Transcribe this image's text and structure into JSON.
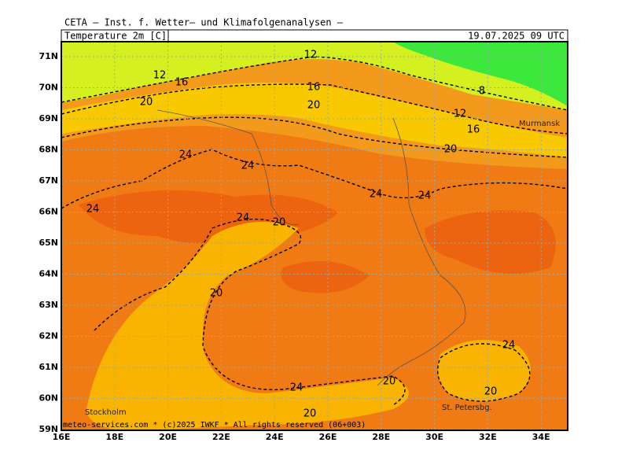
{
  "header": {
    "title": "CETA — Inst. f. Wetter— und Klimafolgenanalysen —",
    "parameter": "Temperature 2m [C]",
    "datetime": "19.07.2025 09 UTC"
  },
  "map": {
    "latitude_labels": [
      "71N",
      "70N",
      "69N",
      "68N",
      "67N",
      "66N",
      "65N",
      "64N",
      "63N",
      "62N",
      "61N",
      "60N",
      "59N"
    ],
    "longitude_labels": [
      "16E",
      "18E",
      "20E",
      "22E",
      "24E",
      "26E",
      "28E",
      "30E",
      "32E",
      "34E"
    ],
    "contour_labels": [
      12,
      12,
      16,
      16,
      8,
      20,
      20,
      12,
      16,
      20,
      24,
      24,
      24,
      24,
      24,
      24,
      20,
      20,
      24,
      20,
      24,
      20,
      20
    ],
    "places": [
      "Murmansk",
      "Stockholm",
      "St. Petersbg."
    ],
    "footer": "meteo-services.com * (c)2025 IWKF * All rights reserved (06+003)"
  }
}
